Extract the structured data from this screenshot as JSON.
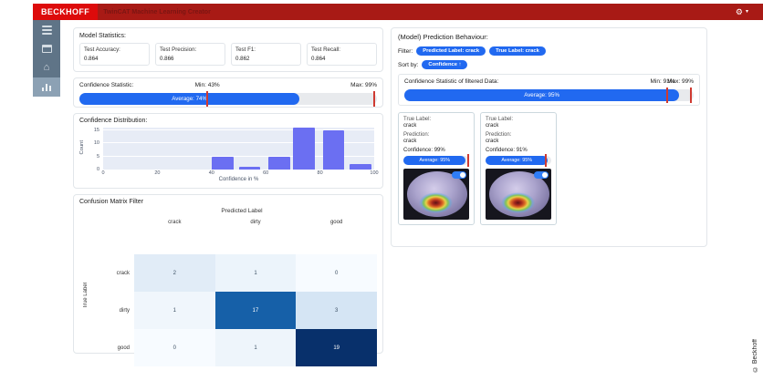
{
  "topbar": {
    "logo": "BECKHOFF",
    "title": "TwinCAT Machine Learning Creator",
    "icons": [
      "settings-icon",
      "dropdown-caret-icon"
    ]
  },
  "sidebar": {
    "items": [
      {
        "icon": "menu-icon",
        "active": false
      },
      {
        "icon": "projects-icon",
        "active": false
      },
      {
        "icon": "home-icon",
        "active": false
      },
      {
        "icon": "analytics-icon",
        "active": true
      }
    ]
  },
  "model_statistics": {
    "title": "Model Statistics:",
    "stats": [
      {
        "label": "Test Accuracy:",
        "value": "0.864"
      },
      {
        "label": "Test Precision:",
        "value": "0.866"
      },
      {
        "label": "Test F1:",
        "value": "0.862"
      },
      {
        "label": "Test Recall:",
        "value": "0.864"
      }
    ]
  },
  "confidence_statistic": {
    "title": "Confidence Statistic:",
    "average_label": "Average: 74%",
    "average_pct": 74,
    "min_label": "Min: 43%",
    "min_pct": 43,
    "max_label": "Max: 99%",
    "max_pct": 99
  },
  "chart_data": {
    "type": "bar",
    "title": "Confidence Distribution:",
    "xlabel": "Confidence in %",
    "ylabel": "Count",
    "xlim": [
      0,
      100
    ],
    "ylim": [
      0,
      16
    ],
    "x_ticks": [
      0,
      20,
      40,
      60,
      80,
      100
    ],
    "y_ticks": [
      0,
      5,
      10,
      15
    ],
    "grid": true,
    "bar_color": "#6b6ff2",
    "plot_bg": "#e7ecf6",
    "bins": [
      {
        "x0": 40,
        "x1": 48,
        "count": 5
      },
      {
        "x0": 50,
        "x1": 58,
        "count": 1
      },
      {
        "x0": 61,
        "x1": 69,
        "count": 5
      },
      {
        "x0": 70,
        "x1": 78,
        "count": 16
      },
      {
        "x0": 81,
        "x1": 89,
        "count": 15
      },
      {
        "x0": 91,
        "x1": 99,
        "count": 2
      }
    ]
  },
  "confusion_matrix": {
    "title": "Confusion Matrix Filter",
    "x_axis": "Predicted Label",
    "y_axis": "True Label",
    "labels": [
      "crack",
      "dirty",
      "good"
    ],
    "rows": [
      [
        2,
        1,
        0
      ],
      [
        1,
        17,
        3
      ],
      [
        0,
        1,
        19
      ]
    ],
    "cell_colors": [
      [
        "#e1ecf7",
        "#ecf4fb",
        "#f7fbff"
      ],
      [
        "#f0f6fc",
        "#1660a8",
        "#d5e5f4"
      ],
      [
        "#f7fbff",
        "#eef5fb",
        "#08306b"
      ]
    ]
  },
  "prediction_behaviour": {
    "title": "(Model) Prediction Behaviour:",
    "filter_label": "Filter:",
    "filters": [
      "Predicted Label: crack",
      "True Label: crack"
    ],
    "sort_label": "Sort by:",
    "sort_value": "Confidence ↑",
    "filtered_stat": {
      "title": "Confidence Statistic of filtered Data:",
      "average_label": "Average: 95%",
      "average_pct": 95,
      "min_label": "Min: 91%",
      "min_pct": 91,
      "max_label": "Max: 99%",
      "max_pct": 99
    },
    "card_labels": {
      "true_label": "True Label:",
      "prediction": "Prediction:"
    },
    "cards": [
      {
        "true_label": "crack",
        "prediction": "crack",
        "confidence_text": "Confidence: 99%",
        "confidence_pct": 99,
        "bar_label": "Average: 95%",
        "bar_pct": 95
      },
      {
        "true_label": "crack",
        "prediction": "crack",
        "confidence_text": "Confidence: 91%",
        "confidence_pct": 91,
        "bar_label": "Average: 95%",
        "bar_pct": 95
      }
    ]
  },
  "footer": {
    "copyright": "© Beckhoff"
  }
}
